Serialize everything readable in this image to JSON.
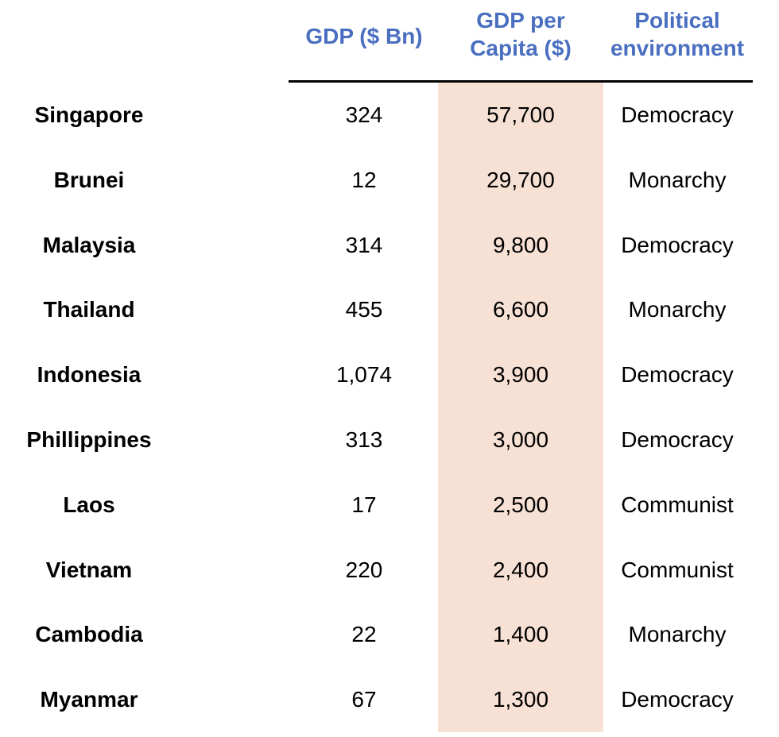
{
  "table": {
    "headers": {
      "gdp": [
        "GDP ($ Bn)"
      ],
      "gdp_per_capita": [
        "GDP per",
        "Capita ($)"
      ],
      "political": [
        "Political",
        "environment"
      ]
    },
    "highlight_color": "#f7e1d5",
    "header_color": "#4a6fc0",
    "rows": [
      {
        "country": "Singapore",
        "gdp": "324",
        "gdp_per_capita": "57,700",
        "political": "Democracy"
      },
      {
        "country": "Brunei",
        "gdp": "12",
        "gdp_per_capita": "29,700",
        "political": "Monarchy"
      },
      {
        "country": "Malaysia",
        "gdp": "314",
        "gdp_per_capita": "9,800",
        "political": "Democracy"
      },
      {
        "country": "Thailand",
        "gdp": "455",
        "gdp_per_capita": "6,600",
        "political": "Monarchy"
      },
      {
        "country": "Indonesia",
        "gdp": "1,074",
        "gdp_per_capita": "3,900",
        "political": "Democracy"
      },
      {
        "country": "Phillippines",
        "gdp": "313",
        "gdp_per_capita": "3,000",
        "political": "Democracy"
      },
      {
        "country": "Laos",
        "gdp": "17",
        "gdp_per_capita": "2,500",
        "political": "Communist"
      },
      {
        "country": "Vietnam",
        "gdp": "220",
        "gdp_per_capita": "2,400",
        "political": "Communist"
      },
      {
        "country": "Cambodia",
        "gdp": "22",
        "gdp_per_capita": "1,400",
        "political": "Monarchy"
      },
      {
        "country": "Myanmar",
        "gdp": "67",
        "gdp_per_capita": "1,300",
        "political": "Democracy"
      }
    ]
  }
}
